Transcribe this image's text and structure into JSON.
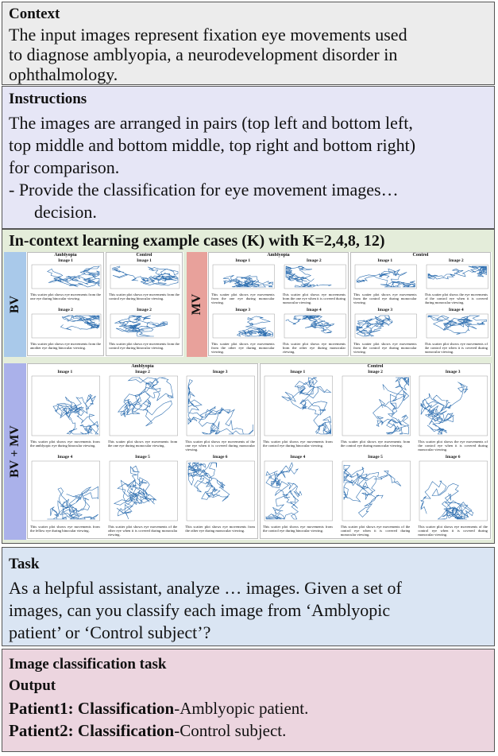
{
  "context": {
    "title": "Context",
    "lines": [
      "The input images represent fixation eye movements used",
      "to diagnose amblyopia, a neurodevelopment disorder in",
      "ophthalmology."
    ]
  },
  "instructions": {
    "title": "Instructions",
    "lines": [
      "The images are arranged in pairs (top left and bottom left,",
      "top middle and bottom middle, top right and bottom right)",
      "for comparison.",
      "- Provide the classification for eye movement images…",
      "decision."
    ]
  },
  "examples": {
    "title": "In-context learning example cases (K) with K=2,4,8, 12)",
    "panels": [
      {
        "label": "BV",
        "groups": [
          {
            "name": "Amblyopia",
            "images": [
              {
                "title": "Image 1",
                "caption": "This scatter plot shows eye movements from the one eye during binocular viewing."
              },
              {
                "title": "Image 2",
                "caption": "This scatter plot shows eye movements from the another eye during binocular viewing."
              }
            ]
          },
          {
            "name": "Control",
            "images": [
              {
                "title": "Image 1",
                "caption": "This scatter plot shows eye movements from the control eye during binocular viewing."
              },
              {
                "title": "Image 2",
                "caption": "This scatter plot shows eye movements from the control eye during binocular viewing."
              }
            ]
          }
        ]
      },
      {
        "label": "MV",
        "groups": [
          {
            "name": "Amblyopia",
            "images": [
              {
                "title": "Image 1",
                "caption": "This scatter plot shows eye movements from the one eye during monocular viewing."
              },
              {
                "title": "Image 2",
                "caption": "This scatter plot shows eye movements from the one eye when it is covered during monocular viewing."
              },
              {
                "title": "Image 3",
                "caption": "This scatter plot shows eye movements from the other eye during monocular viewing."
              },
              {
                "title": "Image 4",
                "caption": "This scatter plot shows eye movements from the other eye during monocular viewing."
              }
            ]
          },
          {
            "name": "Control",
            "images": [
              {
                "title": "Image 1",
                "caption": "This scatter plot shows eye movements from the control eye during monocular viewing."
              },
              {
                "title": "Image 2",
                "caption": "This scatter plot shows the eye movements of the control eye when it is covered during monocular viewing."
              },
              {
                "title": "Image 3",
                "caption": "This scatter plot shows eye movements from the control eye during monocular viewing."
              },
              {
                "title": "Image 4",
                "caption": "This scatter plot shows eye movements of the control eye when it is covered during monocular viewing."
              }
            ]
          }
        ]
      },
      {
        "label": "BV + MV",
        "groups": [
          {
            "name": "Amblyopia",
            "images": [
              {
                "title": "Image 1",
                "caption": "This scatter plot shows eye movements from the amblyopic eye during binocular viewing."
              },
              {
                "title": "Image 2",
                "caption": "This scatter plot shows eye movements from the one eye during monocular viewing."
              },
              {
                "title": "Image 3",
                "caption": "This scatter plot shows eye movements of the one eye when it is covered during monocular viewing."
              },
              {
                "title": "Image 4",
                "caption": "This scatter plot shows eye movements from the fellow eye during binocular viewing."
              },
              {
                "title": "Image 5",
                "caption": "This scatter plot shows eye movements of the other eye when it is covered during monocular viewing."
              },
              {
                "title": "Image 6",
                "caption": "This scatter plot shows eye movements from the other eye during monocular viewing."
              }
            ]
          },
          {
            "name": "Control",
            "images": [
              {
                "title": "Image 1",
                "caption": "This scatter plot shows eye movements from the control eye during binocular viewing."
              },
              {
                "title": "Image 2",
                "caption": "This scatter plot shows eye movements from the control eye during monocular viewing."
              },
              {
                "title": "Image 3",
                "caption": "This scatter plot shows the eye movements of the control eye when it is covered during monocular viewing."
              },
              {
                "title": "Image 4",
                "caption": "This scatter plot shows eye movements from the control eye during binocular viewing."
              },
              {
                "title": "Image 5",
                "caption": "This scatter plot shows eye movements of the control eye when it is covered during monocular viewing."
              },
              {
                "title": "Image 6",
                "caption": "This scatter plot shows eye movements of the control eye when it is covered during monocular viewing."
              }
            ]
          }
        ]
      }
    ]
  },
  "task": {
    "title": "Task",
    "lines": [
      "As a helpful assistant, analyze … images. Given a set of",
      "images, can you classify each image from ‘Amblyopic",
      "patient’ or ‘Control subject’?"
    ]
  },
  "output": {
    "title": "Image classification task",
    "subtitle": "Output",
    "results": [
      {
        "patient": "Patient1:",
        "field": "Classification",
        "value": "-Amblyopic patient."
      },
      {
        "patient": "Patient2:",
        "field": "Classification",
        "value": "-Control subject."
      }
    ]
  }
}
